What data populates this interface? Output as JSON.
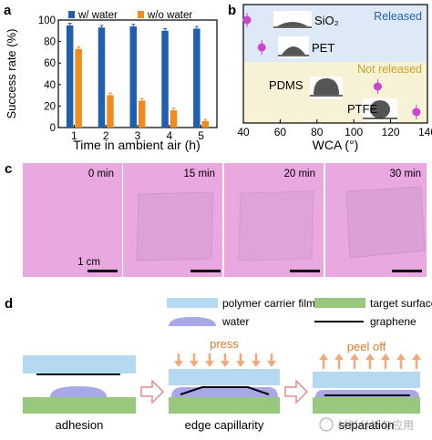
{
  "panels": {
    "a": {
      "letter": "a",
      "ylabel": "Success rate (%)",
      "xlabel": "Time in ambient air (h)",
      "legend": {
        "water": "w/ water",
        "no_water": "w/o water"
      },
      "y_ticks": [
        "0",
        "20",
        "40",
        "60",
        "80",
        "100"
      ],
      "colors": {
        "water": "#1f5fae",
        "no_water": "#f08c1e"
      }
    },
    "b": {
      "letter": "b",
      "xlabel": "WCA (°)",
      "x_ticks": [
        "40",
        "60",
        "80",
        "100",
        "120",
        "140"
      ],
      "released_label": "Released",
      "not_released_label": "Not released",
      "materials": {
        "sio2": "SiO₂",
        "pet": "PET",
        "pdms": "PDMS",
        "ptfe": "PTFE"
      },
      "colors": {
        "released_bg": "#dde9f7",
        "not_released_bg": "#f7f1d5",
        "marker": "#cc44cc"
      }
    },
    "c": {
      "letter": "c",
      "times": [
        "0 min",
        "15 min",
        "20 min",
        "30 min"
      ],
      "scale_label": "1 cm",
      "colors": {
        "background": "#eaa8e0",
        "film": "#d8a0d6"
      }
    },
    "d": {
      "letter": "d",
      "legend": {
        "carrier": "polymer carrier film",
        "target": "target surface",
        "water": "water",
        "graphene": "graphene"
      },
      "steps": [
        "adhesion",
        "edge capillarity",
        "separation"
      ],
      "actions": {
        "press": "press",
        "peel_off": "peel off"
      },
      "watermark": "材料分析与应用",
      "colors": {
        "carrier": "#b6d9f2",
        "target": "#98c77e",
        "water": "#a8a8e8",
        "arrow": "#f2a878",
        "outline_arrow": "#e58a8a"
      }
    }
  },
  "chart_data": {
    "type": "bar",
    "categories": [
      "1",
      "2",
      "3",
      "4",
      "5"
    ],
    "series": [
      {
        "name": "w/ water",
        "values": [
          95,
          93,
          94,
          90,
          92
        ],
        "errors": [
          2,
          2,
          2,
          2,
          2
        ]
      },
      {
        "name": "w/o water",
        "values": [
          73,
          30,
          25,
          16,
          6
        ],
        "errors": [
          2,
          2,
          2,
          2,
          1.5
        ]
      }
    ],
    "xlabel": "Time in ambient air (h)",
    "ylabel": "Success rate (%)",
    "ylim": [
      0,
      100
    ]
  },
  "wca_data": {
    "type": "scatter",
    "xlabel": "WCA (°)",
    "xlim": [
      40,
      140
    ],
    "points": [
      {
        "material": "SiO₂",
        "wca": 42,
        "released": true
      },
      {
        "material": "PET",
        "wca": 50,
        "released": true
      },
      {
        "material": "PDMS",
        "wca": 113,
        "released": false
      },
      {
        "material": "PTFE",
        "wca": 134,
        "released": false
      }
    ]
  }
}
